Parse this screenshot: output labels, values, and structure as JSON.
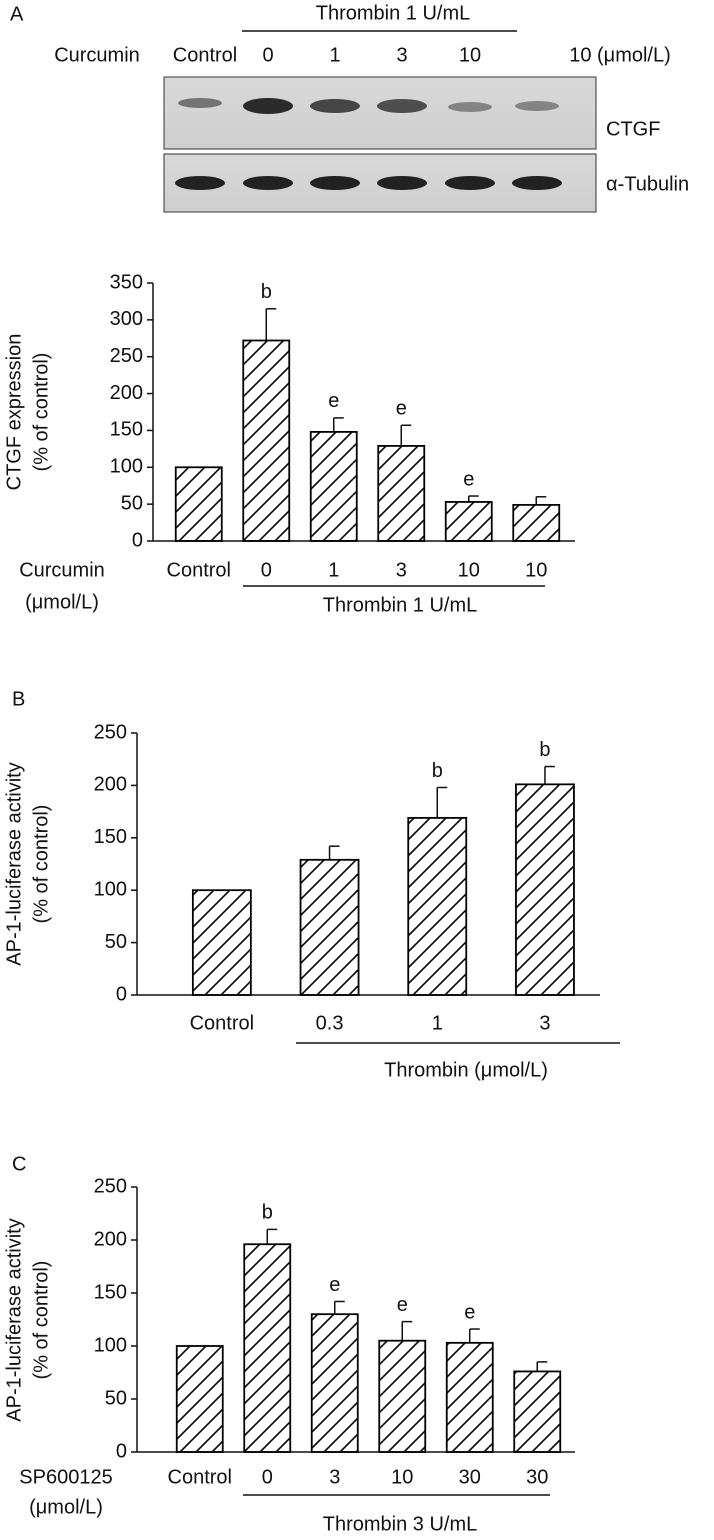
{
  "panels": [
    "A",
    "B",
    "C"
  ],
  "blot": {
    "treatment": "Thrombin 1 U/mL",
    "row_label": "Curcumin",
    "lanes": [
      "Control",
      "0",
      "1",
      "3",
      "10",
      "10 (μmol/L)"
    ],
    "bands": [
      "CTGF",
      "α-Tubulin"
    ]
  },
  "chart_data": [
    {
      "type": "bar",
      "ylabel": [
        "CTGF expression",
        "(% of control)"
      ],
      "row_label": [
        "Curcumin",
        "(μmol/L)"
      ],
      "group_label": "Thrombin 1 U/mL",
      "color": "#000000",
      "categories": [
        "Control",
        "0",
        "1",
        "3",
        "10",
        "10"
      ],
      "values": [
        100,
        272,
        148,
        129,
        53,
        49
      ],
      "errors": [
        0,
        43,
        19,
        28,
        8,
        11
      ],
      "annotations": [
        null,
        "b",
        "e",
        "e",
        "e",
        null
      ],
      "ylim": [
        0,
        350
      ],
      "yticks": [
        0,
        50,
        100,
        150,
        200,
        250,
        300,
        350
      ]
    },
    {
      "type": "bar",
      "ylabel": [
        "AP-1-luciferase activity",
        "(% of control)"
      ],
      "group_label": "Thrombin (μmol/L)",
      "color": "#000000",
      "categories": [
        "Control",
        "0.3",
        "1",
        "3"
      ],
      "values": [
        100,
        129,
        169,
        201
      ],
      "errors": [
        0,
        13,
        29,
        17
      ],
      "annotations": [
        null,
        null,
        "b",
        "b"
      ],
      "ylim": [
        0,
        250
      ],
      "yticks": [
        0,
        50,
        100,
        150,
        200,
        250
      ]
    },
    {
      "type": "bar",
      "ylabel": [
        "AP-1-luciferase activity",
        "(% of control)"
      ],
      "row_label": [
        "SP600125",
        "(μmol/L)"
      ],
      "group_label": "Thrombin 3 U/mL",
      "color": "#000000",
      "categories": [
        "Control",
        "0",
        "3",
        "10",
        "30",
        "30"
      ],
      "values": [
        100,
        196,
        130,
        105,
        103,
        76
      ],
      "errors": [
        0,
        14,
        12,
        18,
        13,
        9
      ],
      "annotations": [
        null,
        "b",
        "e",
        "e",
        "e",
        null
      ],
      "ylim": [
        0,
        250
      ],
      "yticks": [
        0,
        50,
        100,
        150,
        200,
        250
      ]
    }
  ]
}
